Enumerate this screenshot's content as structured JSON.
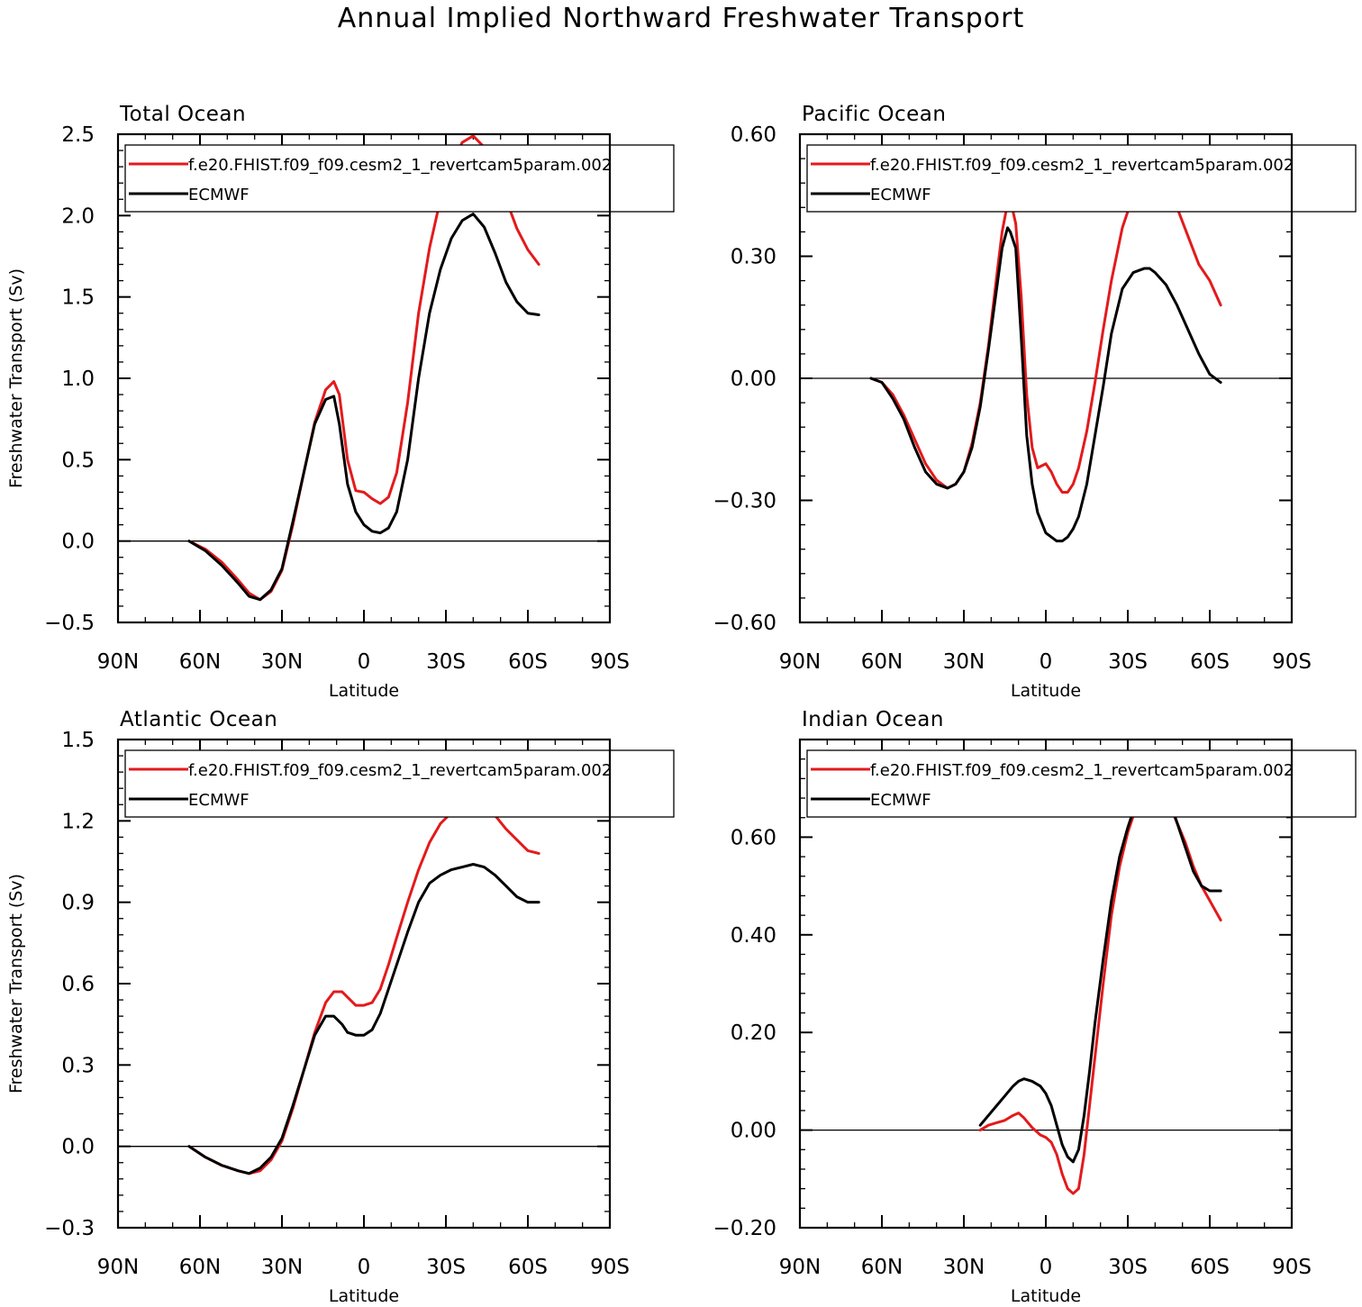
{
  "figure": {
    "title": "Annual Implied Northward Freshwater Transport"
  },
  "chart_data": [
    {
      "type": "line",
      "title": "Total Ocean",
      "xlabel": "Latitude",
      "ylabel": "Freshwater Transport (Sv)",
      "xlim": [
        -90,
        90
      ],
      "ylim": [
        -0.5,
        2.5
      ],
      "x_ticks": [
        -90,
        -60,
        -30,
        0,
        30,
        60,
        90
      ],
      "x_tick_labels": [
        "90N",
        "60N",
        "30N",
        "0",
        "30S",
        "60S",
        "90S"
      ],
      "y_ticks": [
        -0.5,
        0.0,
        0.5,
        1.0,
        1.5,
        2.0,
        2.5
      ],
      "y_tick_labels": [
        "−0.5",
        "0.0",
        "0.5",
        "1.0",
        "1.5",
        "2.0",
        "2.5"
      ],
      "zero_line": true,
      "legend_position": "top",
      "series": [
        {
          "name": "f.e20.FHIST.f09_f09.cesm2_1_revertcam5param.002",
          "color": "#e31a1c",
          "x": [
            -64,
            -58,
            -52,
            -46,
            -42,
            -38,
            -34,
            -30,
            -26,
            -22,
            -18,
            -14,
            -11,
            -9,
            -6,
            -3,
            0,
            3,
            6,
            9,
            12,
            16,
            20,
            24,
            28,
            32,
            36,
            40,
            44,
            48,
            52,
            56,
            60,
            64
          ],
          "y": [
            0.0,
            -0.05,
            -0.13,
            -0.24,
            -0.32,
            -0.36,
            -0.31,
            -0.18,
            0.1,
            0.42,
            0.73,
            0.93,
            0.98,
            0.9,
            0.5,
            0.31,
            0.3,
            0.26,
            0.23,
            0.27,
            0.42,
            0.85,
            1.4,
            1.8,
            2.1,
            2.32,
            2.45,
            2.49,
            2.42,
            2.28,
            2.1,
            1.92,
            1.79,
            1.7
          ]
        },
        {
          "name": "ECMWF",
          "color": "#000000",
          "x": [
            -64,
            -58,
            -52,
            -46,
            -42,
            -38,
            -34,
            -30,
            -26,
            -22,
            -18,
            -14,
            -11,
            -9,
            -6,
            -3,
            0,
            3,
            6,
            9,
            12,
            16,
            20,
            24,
            28,
            32,
            36,
            40,
            44,
            48,
            52,
            56,
            60,
            64
          ],
          "y": [
            0.0,
            -0.06,
            -0.15,
            -0.26,
            -0.34,
            -0.36,
            -0.3,
            -0.17,
            0.12,
            0.42,
            0.72,
            0.87,
            0.89,
            0.72,
            0.35,
            0.18,
            0.1,
            0.06,
            0.05,
            0.08,
            0.18,
            0.5,
            1.0,
            1.4,
            1.67,
            1.86,
            1.97,
            2.01,
            1.93,
            1.77,
            1.59,
            1.47,
            1.4,
            1.39
          ]
        }
      ]
    },
    {
      "type": "line",
      "title": "Pacific Ocean",
      "xlabel": "Latitude",
      "ylabel": "",
      "xlim": [
        -90,
        90
      ],
      "ylim": [
        -0.6,
        0.6
      ],
      "x_ticks": [
        -90,
        -60,
        -30,
        0,
        30,
        60,
        90
      ],
      "x_tick_labels": [
        "90N",
        "60N",
        "30N",
        "0",
        "30S",
        "60S",
        "90S"
      ],
      "y_ticks": [
        -0.6,
        -0.3,
        0.0,
        0.3,
        0.6
      ],
      "y_tick_labels": [
        "−0.60",
        "−0.30",
        "0.00",
        "0.30",
        "0.60"
      ],
      "zero_line": true,
      "legend_position": "top",
      "series": [
        {
          "name": "f.e20.FHIST.f09_f09.cesm2_1_revertcam5param.002",
          "color": "#e31a1c",
          "x": [
            -64,
            -60,
            -56,
            -52,
            -48,
            -44,
            -40,
            -36,
            -33,
            -30,
            -27,
            -24,
            -21,
            -18,
            -16,
            -14,
            -13,
            -11,
            -9,
            -7,
            -5,
            -3,
            0,
            2,
            4,
            6,
            8,
            10,
            12,
            15,
            18,
            21,
            24,
            28,
            32,
            36,
            38,
            40,
            44,
            48,
            52,
            56,
            60,
            64
          ],
          "y": [
            0.0,
            -0.01,
            -0.04,
            -0.09,
            -0.15,
            -0.21,
            -0.25,
            -0.27,
            -0.26,
            -0.23,
            -0.16,
            -0.06,
            0.08,
            0.25,
            0.36,
            0.43,
            0.44,
            0.38,
            0.2,
            -0.04,
            -0.17,
            -0.22,
            -0.21,
            -0.23,
            -0.26,
            -0.28,
            -0.28,
            -0.26,
            -0.22,
            -0.13,
            -0.01,
            0.12,
            0.24,
            0.37,
            0.45,
            0.5,
            0.51,
            0.51,
            0.48,
            0.42,
            0.35,
            0.28,
            0.24,
            0.18
          ]
        },
        {
          "name": "ECMWF",
          "color": "#000000",
          "x": [
            -64,
            -60,
            -56,
            -52,
            -48,
            -44,
            -40,
            -36,
            -33,
            -30,
            -27,
            -24,
            -21,
            -18,
            -16,
            -14,
            -13,
            -11,
            -9,
            -7,
            -5,
            -3,
            0,
            2,
            4,
            6,
            8,
            10,
            12,
            15,
            18,
            21,
            24,
            28,
            32,
            36,
            38,
            40,
            44,
            48,
            52,
            56,
            60,
            64
          ],
          "y": [
            0.0,
            -0.01,
            -0.05,
            -0.1,
            -0.17,
            -0.23,
            -0.26,
            -0.27,
            -0.26,
            -0.23,
            -0.17,
            -0.07,
            0.07,
            0.22,
            0.32,
            0.37,
            0.36,
            0.32,
            0.1,
            -0.14,
            -0.26,
            -0.33,
            -0.38,
            -0.39,
            -0.4,
            -0.4,
            -0.39,
            -0.37,
            -0.34,
            -0.26,
            -0.14,
            -0.02,
            0.11,
            0.22,
            0.26,
            0.27,
            0.27,
            0.26,
            0.23,
            0.18,
            0.12,
            0.06,
            0.01,
            -0.01
          ]
        }
      ]
    },
    {
      "type": "line",
      "title": "Atlantic Ocean",
      "xlabel": "Latitude",
      "ylabel": "Freshwater Transport (Sv)",
      "xlim": [
        -90,
        90
      ],
      "ylim": [
        -0.3,
        1.5
      ],
      "x_ticks": [
        -90,
        -60,
        -30,
        0,
        30,
        60,
        90
      ],
      "x_tick_labels": [
        "90N",
        "60N",
        "30N",
        "0",
        "30S",
        "60S",
        "90S"
      ],
      "y_ticks": [
        -0.3,
        0.0,
        0.3,
        0.6,
        0.9,
        1.2,
        1.5
      ],
      "y_tick_labels": [
        "−0.3",
        "0.0",
        "0.3",
        "0.6",
        "0.9",
        "1.2",
        "1.5"
      ],
      "zero_line": true,
      "legend_position": "top",
      "series": [
        {
          "name": "f.e20.FHIST.f09_f09.cesm2_1_revertcam5param.002",
          "color": "#e31a1c",
          "x": [
            -64,
            -58,
            -52,
            -46,
            -42,
            -38,
            -34,
            -30,
            -26,
            -22,
            -18,
            -14,
            -11,
            -8,
            -6,
            -3,
            0,
            3,
            6,
            9,
            12,
            16,
            20,
            24,
            28,
            32,
            36,
            40,
            44,
            48,
            52,
            56,
            60,
            64
          ],
          "y": [
            0.0,
            -0.04,
            -0.07,
            -0.09,
            -0.1,
            -0.09,
            -0.05,
            0.02,
            0.14,
            0.28,
            0.42,
            0.53,
            0.57,
            0.57,
            0.55,
            0.52,
            0.52,
            0.53,
            0.58,
            0.67,
            0.77,
            0.9,
            1.02,
            1.12,
            1.19,
            1.23,
            1.26,
            1.27,
            1.26,
            1.22,
            1.17,
            1.13,
            1.09,
            1.08
          ]
        },
        {
          "name": "ECMWF",
          "color": "#000000",
          "x": [
            -64,
            -58,
            -52,
            -46,
            -42,
            -38,
            -34,
            -30,
            -26,
            -22,
            -18,
            -14,
            -11,
            -8,
            -6,
            -3,
            0,
            3,
            6,
            9,
            12,
            16,
            20,
            24,
            28,
            32,
            36,
            40,
            44,
            48,
            52,
            56,
            60,
            64
          ],
          "y": [
            0.0,
            -0.04,
            -0.07,
            -0.09,
            -0.1,
            -0.08,
            -0.04,
            0.03,
            0.15,
            0.28,
            0.41,
            0.48,
            0.48,
            0.45,
            0.42,
            0.41,
            0.41,
            0.43,
            0.49,
            0.58,
            0.67,
            0.79,
            0.9,
            0.97,
            1.0,
            1.02,
            1.03,
            1.04,
            1.03,
            1.0,
            0.96,
            0.92,
            0.9,
            0.9
          ]
        }
      ]
    },
    {
      "type": "line",
      "title": "Indian Ocean",
      "xlabel": "Latitude",
      "ylabel": "",
      "xlim": [
        -90,
        90
      ],
      "ylim": [
        -0.2,
        0.8
      ],
      "x_ticks": [
        -90,
        -60,
        -30,
        0,
        30,
        60,
        90
      ],
      "x_tick_labels": [
        "90N",
        "60N",
        "30N",
        "0",
        "30S",
        "60S",
        "90S"
      ],
      "y_ticks": [
        -0.2,
        0.0,
        0.2,
        0.4,
        0.6
      ],
      "y_tick_labels": [
        "−0.20",
        "0.00",
        "0.20",
        "0.40",
        "0.60"
      ],
      "zero_line": true,
      "legend_position": "top",
      "series": [
        {
          "name": "f.e20.FHIST.f09_f09.cesm2_1_revertcam5param.002",
          "color": "#e31a1c",
          "x": [
            -24,
            -21,
            -18,
            -15,
            -12,
            -10,
            -8,
            -5,
            -2,
            0,
            2,
            4,
            6,
            8,
            10,
            12,
            14,
            16,
            18,
            21,
            24,
            27,
            30,
            33,
            36,
            39,
            42,
            45,
            48,
            51,
            54,
            57,
            60,
            64
          ],
          "y": [
            0.0,
            0.01,
            0.015,
            0.02,
            0.03,
            0.035,
            0.025,
            0.005,
            -0.01,
            -0.015,
            -0.025,
            -0.05,
            -0.09,
            -0.12,
            -0.13,
            -0.12,
            -0.05,
            0.05,
            0.15,
            0.3,
            0.44,
            0.54,
            0.61,
            0.66,
            0.69,
            0.71,
            0.7,
            0.67,
            0.63,
            0.59,
            0.54,
            0.5,
            0.47,
            0.43
          ]
        },
        {
          "name": "ECMWF",
          "color": "#000000",
          "x": [
            -24,
            -21,
            -18,
            -15,
            -12,
            -10,
            -8,
            -5,
            -2,
            0,
            2,
            4,
            6,
            8,
            10,
            12,
            14,
            16,
            18,
            21,
            24,
            27,
            30,
            33,
            36,
            39,
            42,
            45,
            48,
            51,
            54,
            57,
            60,
            64
          ],
          "y": [
            0.01,
            0.03,
            0.05,
            0.07,
            0.09,
            0.1,
            0.105,
            0.1,
            0.09,
            0.075,
            0.05,
            0.01,
            -0.03,
            -0.055,
            -0.065,
            -0.04,
            0.03,
            0.12,
            0.22,
            0.35,
            0.47,
            0.56,
            0.62,
            0.67,
            0.7,
            0.71,
            0.71,
            0.68,
            0.63,
            0.58,
            0.53,
            0.5,
            0.49,
            0.49
          ]
        }
      ]
    }
  ]
}
